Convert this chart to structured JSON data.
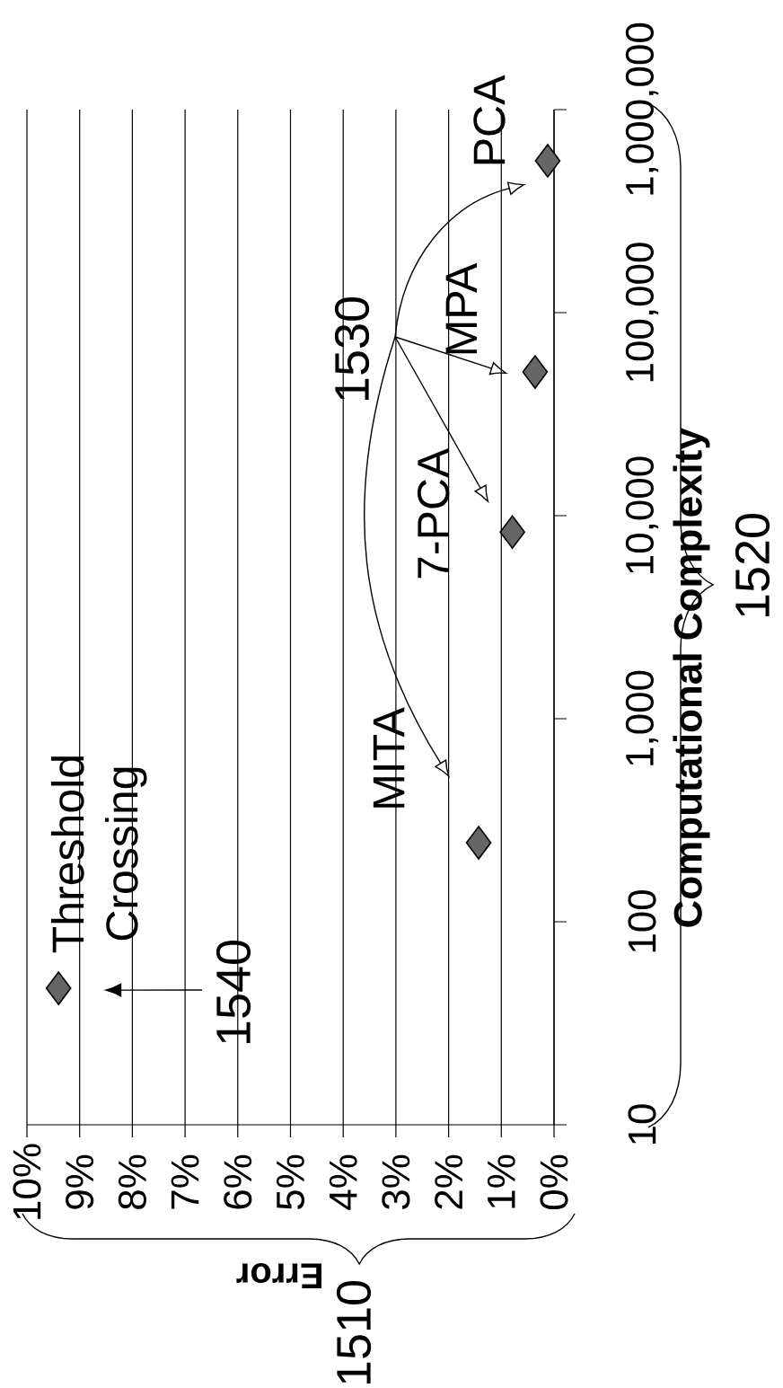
{
  "chart_data": {
    "type": "scatter",
    "xlabel": "Error",
    "ylabel": "Computational Complexity",
    "log": "y",
    "grid": "x",
    "marker": "diamond",
    "xlim": [
      10,
      0
    ],
    "xticks": [
      {
        "value": 0,
        "label": "0%"
      },
      {
        "value": 1,
        "label": "1%"
      },
      {
        "value": 2,
        "label": "2%"
      },
      {
        "value": 3,
        "label": "3%"
      },
      {
        "value": 4,
        "label": "4%"
      },
      {
        "value": 5,
        "label": "5%"
      },
      {
        "value": 6,
        "label": "6%"
      },
      {
        "value": 7,
        "label": "7%"
      },
      {
        "value": 8,
        "label": "8%"
      },
      {
        "value": 9,
        "label": "9%"
      },
      {
        "value": 10,
        "label": "10%"
      }
    ],
    "ylim": [
      10,
      1000000
    ],
    "yticks": [
      {
        "value": 10,
        "label": "10"
      },
      {
        "value": 100,
        "label": "100"
      },
      {
        "value": 1000,
        "label": "1,000"
      },
      {
        "value": 10000,
        "label": "10,000"
      },
      {
        "value": 100000,
        "label": "100,000"
      },
      {
        "value": 1000000,
        "label": "1,000,000"
      }
    ],
    "series": [
      {
        "color": "#666666",
        "x": [
          9.4
        ],
        "values": [
          47
        ]
      },
      {
        "color": "#666666",
        "x": [
          1.43
        ],
        "values": [
          245
        ]
      },
      {
        "color": "#666666",
        "x": [
          0.79
        ],
        "values": [
          8300
        ]
      },
      {
        "color": "#666666",
        "x": [
          0.36
        ],
        "values": [
          51000
        ]
      },
      {
        "color": "#666666",
        "x": [
          0.12
        ],
        "values": [
          560000
        ]
      }
    ],
    "annotations": [
      {
        "text": "Threshold Crossing",
        "x": 9.4,
        "y": 47
      },
      {
        "text": "MITA",
        "x": 1.43,
        "y": 245
      },
      {
        "text": "7-PCA",
        "x": 0.79,
        "y": 8300
      },
      {
        "text": "MPA",
        "x": 0.36,
        "y": 51000
      },
      {
        "text": "PCA",
        "x": 0.12,
        "y": 560000
      },
      "1510",
      "1520",
      "1530",
      "1540"
    ]
  }
}
